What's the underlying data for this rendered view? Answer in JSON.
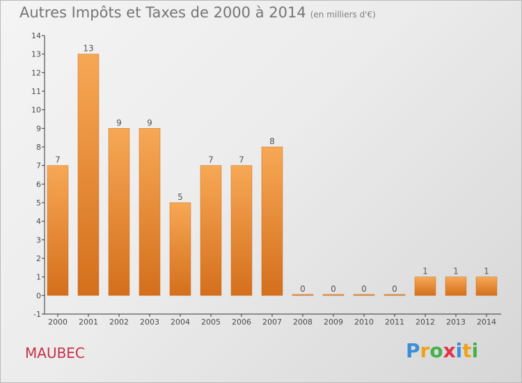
{
  "header": {
    "title": "Autres Impôts et Taxes de 2000 à 2014",
    "unit_note": "(en milliers d'€)"
  },
  "footer": {
    "commune": "MAUBEC",
    "logo_letters": [
      {
        "char": "P",
        "color": "#3b8fd6"
      },
      {
        "char": "r",
        "color": "#f0a11c"
      },
      {
        "char": "o",
        "color": "#46b04a"
      },
      {
        "char": "x",
        "color": "#e2324a"
      },
      {
        "char": "i",
        "color": "#3b8fd6"
      },
      {
        "char": "t",
        "color": "#f0a11c"
      },
      {
        "char": "i",
        "color": "#46b04a"
      }
    ]
  },
  "chart_data": {
    "type": "bar",
    "categories": [
      "2000",
      "2001",
      "2002",
      "2003",
      "2004",
      "2005",
      "2006",
      "2007",
      "2008",
      "2009",
      "2010",
      "2011",
      "2012",
      "2013",
      "2014"
    ],
    "values": [
      7,
      13,
      9,
      9,
      5,
      7,
      7,
      8,
      0,
      0,
      0,
      0,
      1,
      1,
      1
    ],
    "data_labels": [
      "7",
      "13",
      "9",
      "9",
      "5",
      "7",
      "7",
      "8",
      "0",
      "0",
      "0",
      "0",
      "1",
      "1",
      "1"
    ],
    "ylim": [
      -1,
      14
    ],
    "y_ticks": [
      "-1",
      "0",
      "1",
      "2",
      "3",
      "4",
      "5",
      "6",
      "7",
      "8",
      "9",
      "10",
      "11",
      "12",
      "13",
      "14"
    ],
    "grid": false,
    "bar_color_light": "#f7a855",
    "bar_color_dark": "#d46f1c"
  }
}
